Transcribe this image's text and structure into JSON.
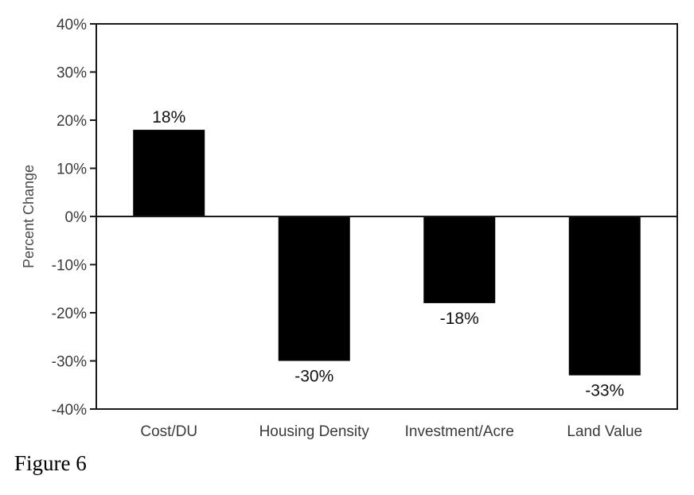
{
  "chart_data": {
    "type": "bar",
    "categories": [
      "Cost/DU",
      "Housing Density",
      "Investment/Acre",
      "Land Value"
    ],
    "values": [
      18,
      -30,
      -18,
      -33
    ],
    "value_labels": [
      "18%",
      "-30%",
      "-18%",
      "-33%"
    ],
    "ylabel": "Percent Change",
    "ylim": [
      -40,
      40
    ],
    "yticks": [
      40,
      30,
      20,
      10,
      0,
      -10,
      -20,
      -30,
      -40
    ],
    "ytick_labels": [
      "40%",
      "30%",
      "20%",
      "10%",
      "0%",
      "-10%",
      "-20%",
      "-30%",
      "-40%"
    ],
    "bar_color": "#000000",
    "grid": false,
    "legend": "none"
  },
  "caption": "Figure 6"
}
